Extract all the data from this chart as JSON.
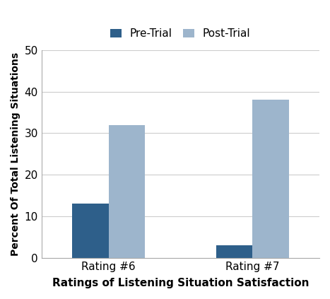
{
  "categories": [
    "Rating #6",
    "Rating #7"
  ],
  "pre_trial": [
    13,
    3
  ],
  "post_trial": [
    32,
    38
  ],
  "pre_color": "#2E5F8A",
  "post_color": "#9DB5CC",
  "xlabel": "Ratings of Listening Situation Satisfaction",
  "ylabel": "Percent Of Total Listening Situations",
  "ylim": [
    0,
    50
  ],
  "yticks": [
    0,
    10,
    20,
    30,
    40,
    50
  ],
  "legend_labels": [
    "Pre-Trial",
    "Post-Trial"
  ],
  "bar_width": 0.38,
  "group_positions": [
    1.0,
    2.5
  ]
}
